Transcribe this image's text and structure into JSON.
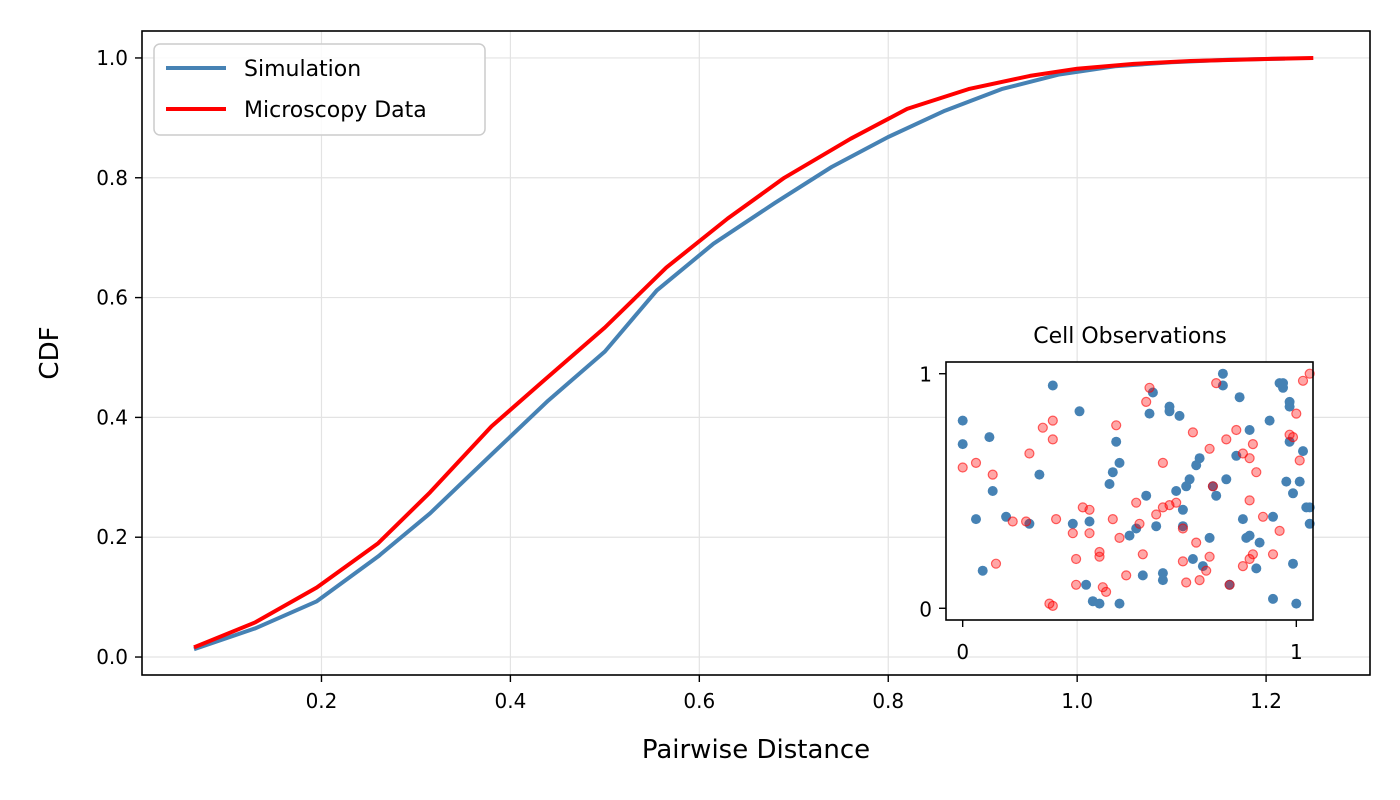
{
  "chart_data": [
    {
      "type": "line",
      "title": "",
      "xlabel": "Pairwise Distance",
      "ylabel": "CDF",
      "xlim": [
        0.01,
        1.31
      ],
      "ylim": [
        -0.03,
        1.045
      ],
      "xticks": [
        "0.2",
        "0.4",
        "0.6",
        "0.8",
        "1.0",
        "1.2"
      ],
      "yticks": [
        "0.0",
        "0.2",
        "0.4",
        "0.6",
        "0.8",
        "1.0"
      ],
      "grid": true,
      "legend_position": "upper-left",
      "series": [
        {
          "name": "Simulation",
          "color": "#4682b4",
          "x": [
            0.065,
            0.13,
            0.195,
            0.26,
            0.315,
            0.38,
            0.44,
            0.5,
            0.555,
            0.615,
            0.68,
            0.74,
            0.8,
            0.86,
            0.92,
            0.98,
            1.04,
            1.1,
            1.16,
            1.22
          ],
          "y": [
            0.013,
            0.048,
            0.093,
            0.168,
            0.24,
            0.338,
            0.428,
            0.51,
            0.612,
            0.69,
            0.758,
            0.818,
            0.868,
            0.912,
            0.948,
            0.972,
            0.986,
            0.993,
            0.997,
            0.999
          ]
        },
        {
          "name": "Microscopy Data",
          "color": "#ff0000",
          "x": [
            0.065,
            0.13,
            0.195,
            0.26,
            0.315,
            0.38,
            0.44,
            0.5,
            0.565,
            0.63,
            0.69,
            0.76,
            0.82,
            0.885,
            0.95,
            1.0,
            1.06,
            1.12,
            1.19,
            1.25
          ],
          "y": [
            0.016,
            0.058,
            0.116,
            0.19,
            0.275,
            0.385,
            0.468,
            0.55,
            0.65,
            0.732,
            0.8,
            0.865,
            0.915,
            0.948,
            0.97,
            0.982,
            0.99,
            0.995,
            0.998,
            1.0
          ]
        }
      ]
    },
    {
      "type": "scatter",
      "title": "Cell Observations",
      "xlabel": "",
      "ylabel": "",
      "xlim": [
        -0.05,
        1.05
      ],
      "ylim": [
        -0.05,
        1.05
      ],
      "xticks": [
        "0",
        "1"
      ],
      "yticks": [
        "0",
        "1"
      ],
      "grid": false,
      "series": [
        {
          "name": "",
          "color": "#4682b4",
          "points": [
            [
              0.0,
              0.8
            ],
            [
              0.0,
              0.7
            ],
            [
              0.04,
              0.38
            ],
            [
              0.06,
              0.16
            ],
            [
              0.08,
              0.73
            ],
            [
              0.09,
              0.5
            ],
            [
              0.13,
              0.39
            ],
            [
              0.2,
              0.36
            ],
            [
              0.23,
              0.57
            ],
            [
              0.27,
              0.95
            ],
            [
              0.33,
              0.36
            ],
            [
              0.35,
              0.84
            ],
            [
              0.38,
              0.37
            ],
            [
              0.37,
              0.1
            ],
            [
              0.39,
              0.03
            ],
            [
              0.41,
              0.02
            ],
            [
              0.44,
              0.53
            ],
            [
              0.45,
              0.58
            ],
            [
              0.46,
              0.71
            ],
            [
              0.47,
              0.62
            ],
            [
              0.47,
              0.02
            ],
            [
              0.5,
              0.31
            ],
            [
              0.52,
              0.34
            ],
            [
              0.54,
              0.14
            ],
            [
              0.55,
              0.48
            ],
            [
              0.56,
              0.83
            ],
            [
              0.57,
              0.92
            ],
            [
              0.58,
              0.35
            ],
            [
              0.6,
              0.12
            ],
            [
              0.6,
              0.15
            ],
            [
              0.62,
              0.86
            ],
            [
              0.62,
              0.84
            ],
            [
              0.64,
              0.5
            ],
            [
              0.65,
              0.82
            ],
            [
              0.66,
              0.35
            ],
            [
              0.66,
              0.42
            ],
            [
              0.67,
              0.52
            ],
            [
              0.68,
              0.55
            ],
            [
              0.69,
              0.21
            ],
            [
              0.7,
              0.61
            ],
            [
              0.71,
              0.64
            ],
            [
              0.72,
              0.18
            ],
            [
              0.74,
              0.3
            ],
            [
              0.75,
              0.52
            ],
            [
              0.76,
              0.48
            ],
            [
              0.78,
              0.95
            ],
            [
              0.78,
              1.0
            ],
            [
              0.79,
              0.55
            ],
            [
              0.8,
              0.1
            ],
            [
              0.82,
              0.65
            ],
            [
              0.83,
              0.9
            ],
            [
              0.84,
              0.38
            ],
            [
              0.85,
              0.3
            ],
            [
              0.86,
              0.31
            ],
            [
              0.86,
              0.76
            ],
            [
              0.88,
              0.17
            ],
            [
              0.89,
              0.28
            ],
            [
              0.92,
              0.8
            ],
            [
              0.93,
              0.04
            ],
            [
              0.93,
              0.39
            ],
            [
              0.95,
              0.96
            ],
            [
              0.96,
              0.94
            ],
            [
              0.96,
              0.96
            ],
            [
              0.97,
              0.54
            ],
            [
              0.98,
              0.71
            ],
            [
              0.98,
              0.88
            ],
            [
              0.98,
              0.86
            ],
            [
              0.99,
              0.49
            ],
            [
              0.99,
              0.19
            ],
            [
              1.0,
              0.02
            ],
            [
              1.01,
              0.54
            ],
            [
              1.02,
              0.67
            ],
            [
              1.03,
              0.43
            ],
            [
              1.04,
              0.43
            ],
            [
              1.04,
              0.36
            ]
          ]
        },
        {
          "name": "",
          "color": "#ff0000",
          "points": [
            [
              0.0,
              0.6
            ],
            [
              0.04,
              0.62
            ],
            [
              0.09,
              0.57
            ],
            [
              0.1,
              0.19
            ],
            [
              0.15,
              0.37
            ],
            [
              0.19,
              0.37
            ],
            [
              0.2,
              0.66
            ],
            [
              0.24,
              0.77
            ],
            [
              0.27,
              0.72
            ],
            [
              0.27,
              0.8
            ],
            [
              0.28,
              0.38
            ],
            [
              0.26,
              0.02
            ],
            [
              0.27,
              0.01
            ],
            [
              0.33,
              0.32
            ],
            [
              0.34,
              0.1
            ],
            [
              0.34,
              0.21
            ],
            [
              0.36,
              0.43
            ],
            [
              0.38,
              0.32
            ],
            [
              0.38,
              0.42
            ],
            [
              0.41,
              0.22
            ],
            [
              0.41,
              0.24
            ],
            [
              0.42,
              0.09
            ],
            [
              0.43,
              0.07
            ],
            [
              0.45,
              0.38
            ],
            [
              0.46,
              0.78
            ],
            [
              0.47,
              0.3
            ],
            [
              0.49,
              0.14
            ],
            [
              0.52,
              0.45
            ],
            [
              0.53,
              0.36
            ],
            [
              0.54,
              0.23
            ],
            [
              0.55,
              0.88
            ],
            [
              0.56,
              0.94
            ],
            [
              0.58,
              0.4
            ],
            [
              0.6,
              0.43
            ],
            [
              0.6,
              0.62
            ],
            [
              0.62,
              0.44
            ],
            [
              0.64,
              0.45
            ],
            [
              0.66,
              0.34
            ],
            [
              0.66,
              0.2
            ],
            [
              0.67,
              0.11
            ],
            [
              0.69,
              0.75
            ],
            [
              0.7,
              0.28
            ],
            [
              0.71,
              0.12
            ],
            [
              0.73,
              0.16
            ],
            [
              0.74,
              0.68
            ],
            [
              0.74,
              0.22
            ],
            [
              0.75,
              0.52
            ],
            [
              0.76,
              0.96
            ],
            [
              0.79,
              0.72
            ],
            [
              0.8,
              0.1
            ],
            [
              0.82,
              0.76
            ],
            [
              0.84,
              0.18
            ],
            [
              0.84,
              0.66
            ],
            [
              0.86,
              0.64
            ],
            [
              0.86,
              0.46
            ],
            [
              0.86,
              0.21
            ],
            [
              0.87,
              0.23
            ],
            [
              0.87,
              0.7
            ],
            [
              0.88,
              0.58
            ],
            [
              0.9,
              0.39
            ],
            [
              0.93,
              0.23
            ],
            [
              0.95,
              0.33
            ],
            [
              0.98,
              0.74
            ],
            [
              0.99,
              0.73
            ],
            [
              1.0,
              0.83
            ],
            [
              1.01,
              0.63
            ],
            [
              1.02,
              0.97
            ],
            [
              1.04,
              1.0
            ]
          ]
        }
      ]
    }
  ]
}
